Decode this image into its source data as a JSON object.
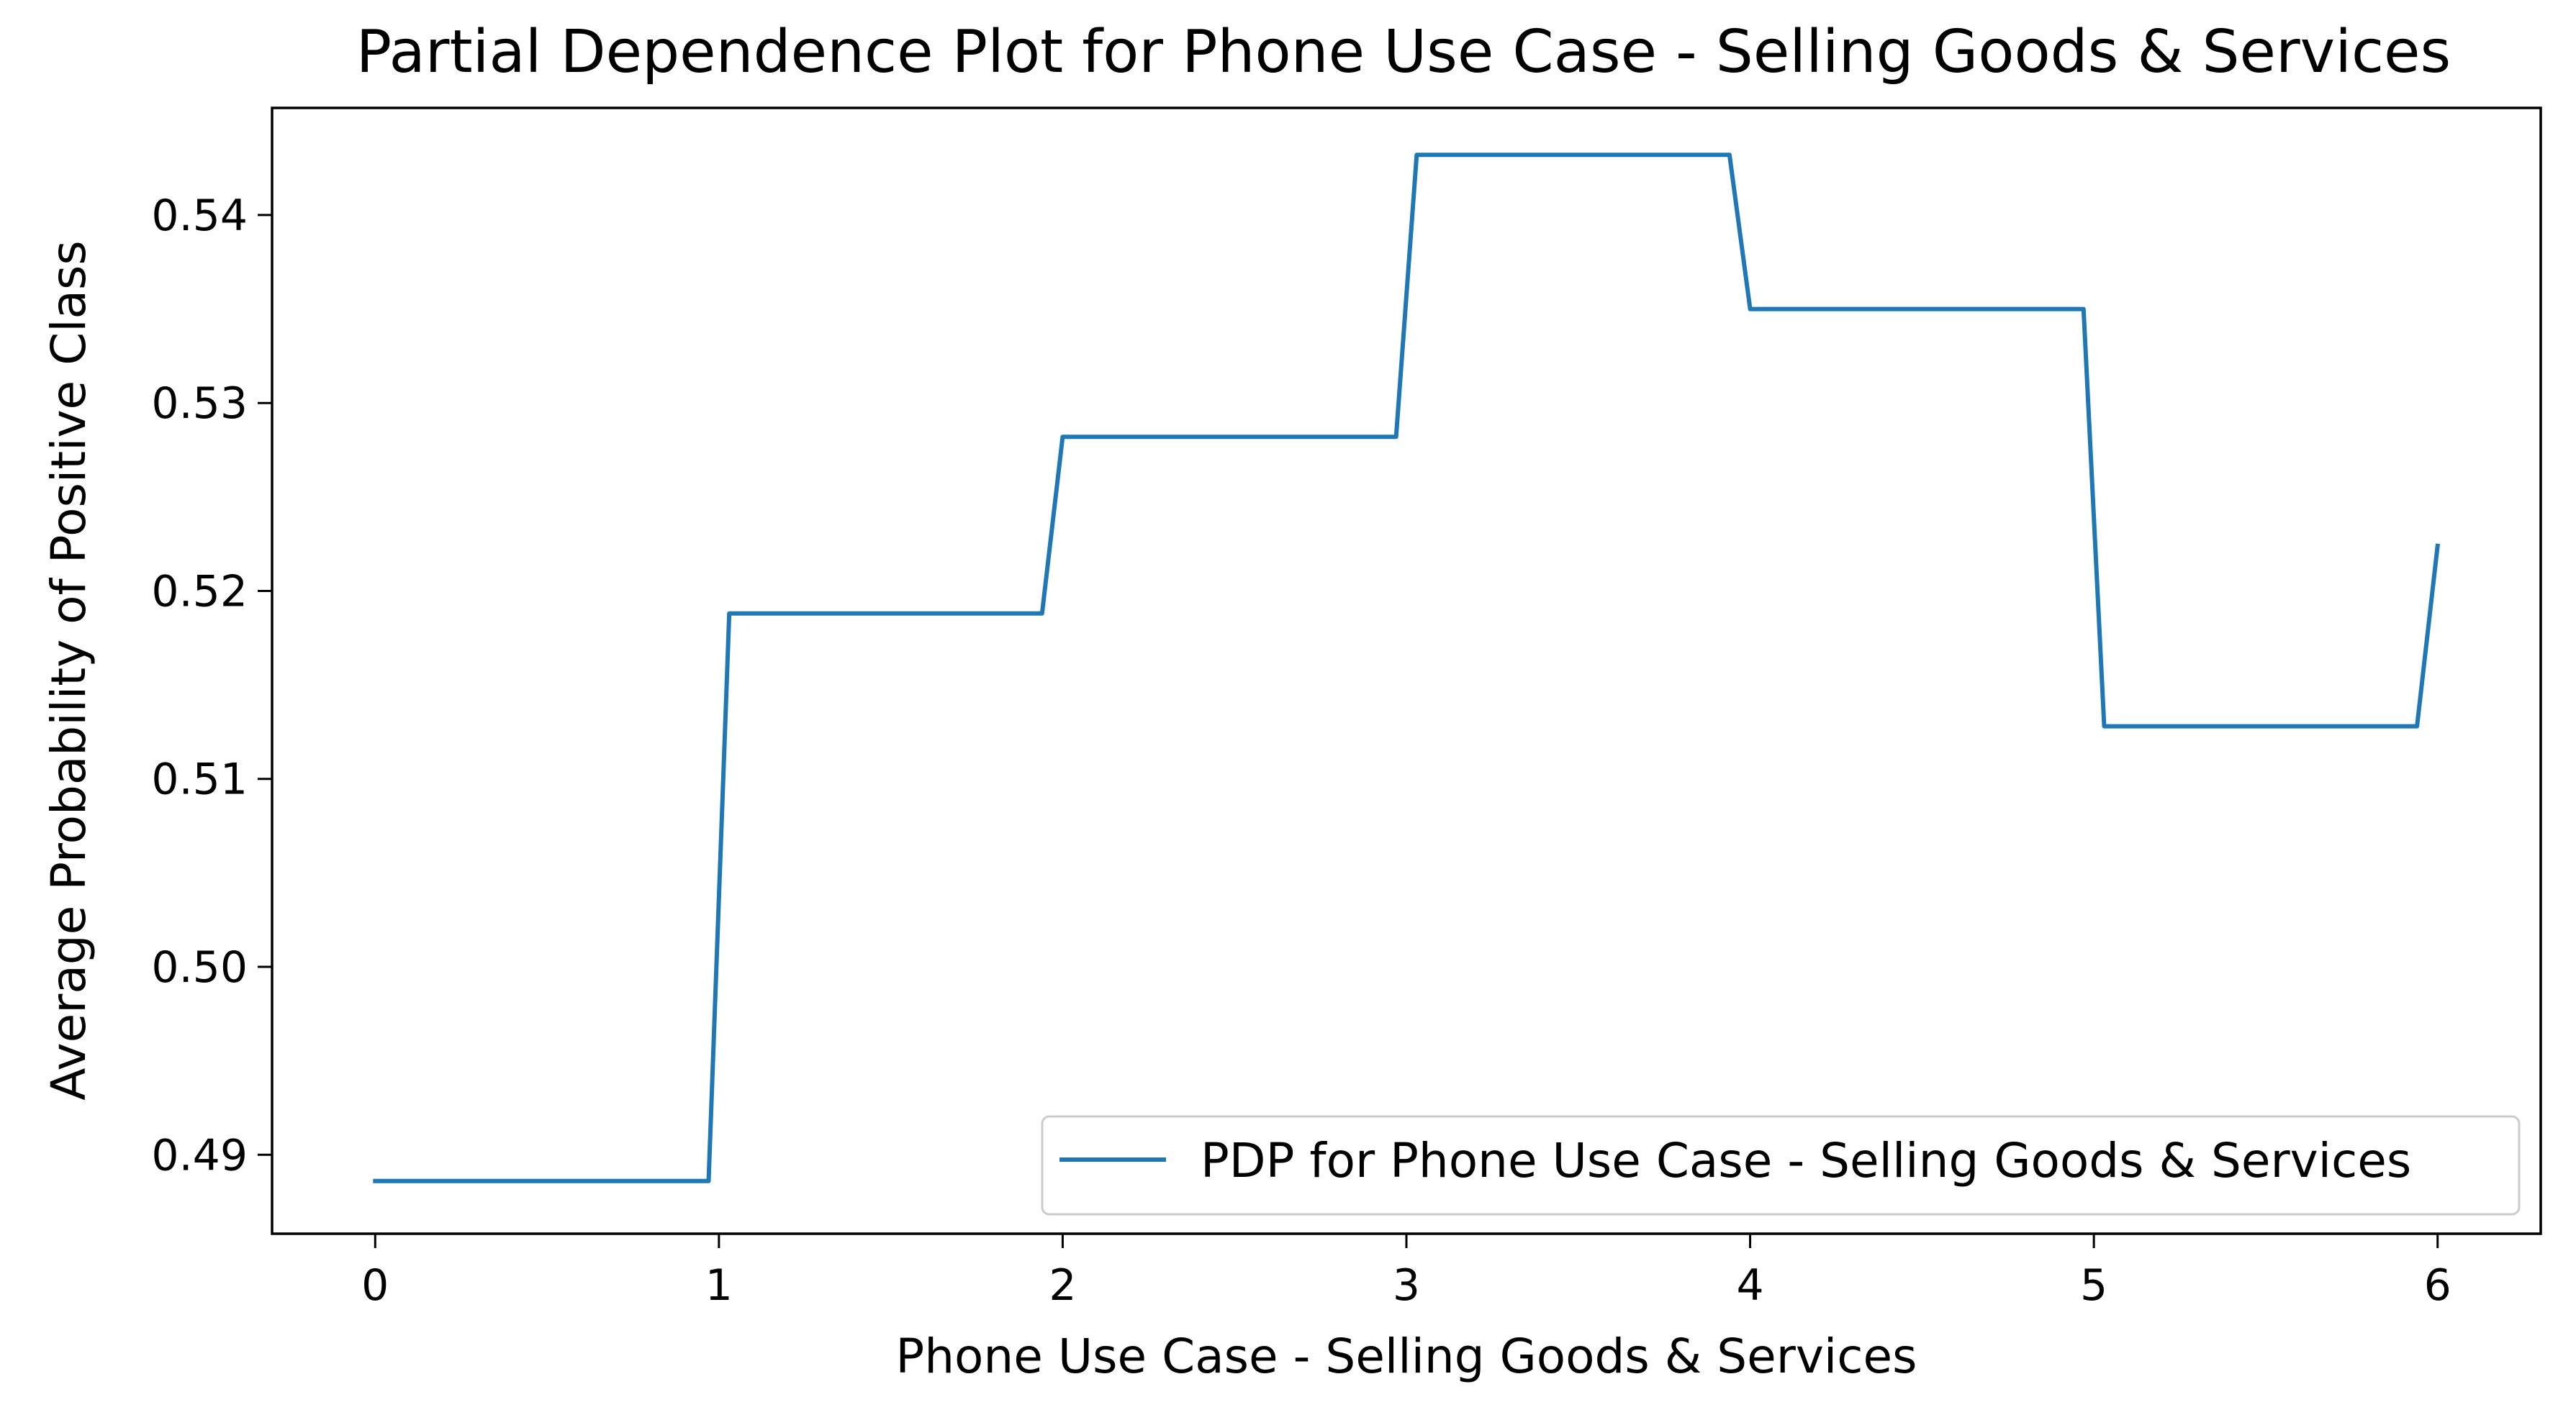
{
  "chart_data": {
    "type": "line",
    "title": "Partial Dependence Plot for Phone Use Case - Selling Goods & Services",
    "xlabel": "Phone Use Case - Selling Goods & Services",
    "ylabel": "Average Probability of Positive Class",
    "xlim": [
      -0.3,
      6.3
    ],
    "ylim": [
      0.4858,
      0.5457
    ],
    "xticks": [
      0,
      1,
      2,
      3,
      4,
      5,
      6
    ],
    "xtick_labels": [
      "0",
      "1",
      "2",
      "3",
      "4",
      "5",
      "6"
    ],
    "yticks": [
      0.49,
      0.5,
      0.51,
      0.52,
      0.53,
      0.54
    ],
    "ytick_labels": [
      "0.49",
      "0.50",
      "0.51",
      "0.52",
      "0.53",
      "0.54"
    ],
    "grid": false,
    "legend_position": "lower-right",
    "series": [
      {
        "name": "PDP for Phone Use Case - Selling Goods & Services",
        "color": "#1f77b4",
        "x": [
          0.0,
          0.97,
          1.03,
          1.94,
          2.0,
          2.97,
          3.03,
          3.94,
          4.0,
          4.97,
          5.03,
          5.94,
          6.0
        ],
        "y": [
          0.4886,
          0.4886,
          0.5188,
          0.5188,
          0.5282,
          0.5282,
          0.5432,
          0.5432,
          0.535,
          0.535,
          0.5128,
          0.5128,
          0.5224
        ]
      }
    ]
  }
}
